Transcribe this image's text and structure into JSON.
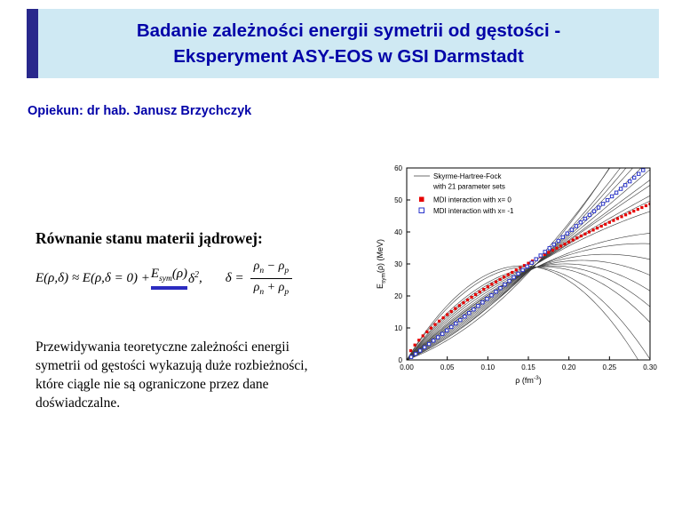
{
  "slide": {
    "title_line1": "Badanie zależności energii symetrii od gęstości -",
    "title_line2": "Eksperyment ASY-EOS w GSI Darmstadt",
    "supervisor": "Opiekun: dr hab. Janusz Brzychczyk",
    "section_heading": "Równanie stanu materii jądrowej:",
    "paragraph_lines": [
      "Przewidywania teoretyczne zależności energii",
      "symetrii od gęstości wykazują duże rozbieżności,",
      "które ciągle nie są ograniczone przez dane",
      "doświadczalne."
    ],
    "colors": {
      "banner_bg": "#cfe9f3",
      "banner_bar": "#28288c",
      "title_text": "#0202a8",
      "equation_underline": "#2b2bc0"
    }
  },
  "equation": {
    "part1": "E(ρ,δ) ≈ E(ρ,δ = 0) + ",
    "e": "E",
    "sym": "sym",
    "arg": "(ρ)",
    "delta": "δ",
    "two": "2",
    "comma": " ,",
    "delta_def": "δ = ",
    "rho": "ρ",
    "sub_n": "n",
    "minus": " − ",
    "sub_p": "p",
    "plus": " + "
  },
  "chart_data": {
    "type": "line",
    "title": "",
    "xlabel": "ρ (fm⁻³)",
    "ylabel": "E_sym(ρ) (MeV)",
    "xlabel_parts": {
      "pre": "ρ (fm",
      "sup": "-3",
      "post": ")"
    },
    "ylabel_parts": {
      "base": "E",
      "sub": "sym",
      "rest": "(ρ) (MeV)"
    },
    "xlim": [
      0,
      0.3
    ],
    "ylim": [
      0,
      60
    ],
    "x_ticks": [
      0.0,
      0.05,
      0.1,
      0.15,
      0.2,
      0.25,
      0.3
    ],
    "y_ticks": [
      0,
      10,
      20,
      30,
      40,
      50,
      60
    ],
    "grid": false,
    "legend_position": "top-left-inside",
    "legend": [
      {
        "label": "Skyrme-Hartree-Fock",
        "label2": "with 21 parameter sets",
        "type": "line",
        "color": "#3c3c3c"
      },
      {
        "label": "MDI interaction with x= 0",
        "type": "square-filled",
        "color": "#e60000"
      },
      {
        "label": "MDI interaction with x= -1",
        "type": "square-open",
        "color": "#2a35cc"
      }
    ],
    "rho0": 0.16,
    "curve_color": "#3c3c3c",
    "skyrme_curves": [
      {
        "A": 15,
        "B": 15
      },
      {
        "A": 18,
        "B": 13
      },
      {
        "A": 20,
        "B": 10
      },
      {
        "A": 22,
        "B": 8
      },
      {
        "A": 24,
        "B": 6
      },
      {
        "A": 26,
        "B": 4
      },
      {
        "A": 28,
        "B": 2
      },
      {
        "A": 30,
        "B": 0
      },
      {
        "A": 31,
        "B": -1
      },
      {
        "A": 33,
        "B": -3
      },
      {
        "A": 34,
        "B": -4
      },
      {
        "A": 36,
        "B": -6
      },
      {
        "A": 38,
        "B": -9
      },
      {
        "A": 40,
        "B": -11
      },
      {
        "A": 43,
        "B": -14
      },
      {
        "A": 46,
        "B": -17
      },
      {
        "A": 49,
        "B": -20
      },
      {
        "A": 52,
        "B": -23
      },
      {
        "A": 55,
        "B": -26
      },
      {
        "A": 62,
        "B": -33
      },
      {
        "A": 66,
        "B": -37
      }
    ],
    "series": [
      {
        "name": "MDI interaction with x= 0",
        "marker": "square-filled",
        "color": "#e60000",
        "step": 0.005,
        "model": {
          "S0": 31.6,
          "gamma": 0.69
        },
        "points": [
          [
            0,
            0
          ],
          [
            0.025,
            8.8
          ],
          [
            0.05,
            14.2
          ],
          [
            0.075,
            18.7
          ],
          [
            0.1,
            22.9
          ],
          [
            0.125,
            26.7
          ],
          [
            0.15,
            30.2
          ],
          [
            0.175,
            33.6
          ],
          [
            0.2,
            36.9
          ],
          [
            0.225,
            40.0
          ],
          [
            0.25,
            43.0
          ],
          [
            0.275,
            45.9
          ],
          [
            0.3,
            48.8
          ]
        ]
      },
      {
        "name": "MDI interaction with x= -1",
        "marker": "square-open",
        "color": "#2a35cc",
        "step": 0.0055,
        "model": {
          "S0": 31.6,
          "gamma": 1.05
        },
        "points": [
          [
            0,
            0
          ],
          [
            0.025,
            4.5
          ],
          [
            0.05,
            9.3
          ],
          [
            0.075,
            14.3
          ],
          [
            0.1,
            19.3
          ],
          [
            0.125,
            24.4
          ],
          [
            0.15,
            29.5
          ],
          [
            0.175,
            34.7
          ],
          [
            0.2,
            39.9
          ],
          [
            0.225,
            45.2
          ],
          [
            0.25,
            50.5
          ],
          [
            0.275,
            55.8
          ],
          [
            0.3,
            61.1
          ]
        ]
      }
    ]
  }
}
